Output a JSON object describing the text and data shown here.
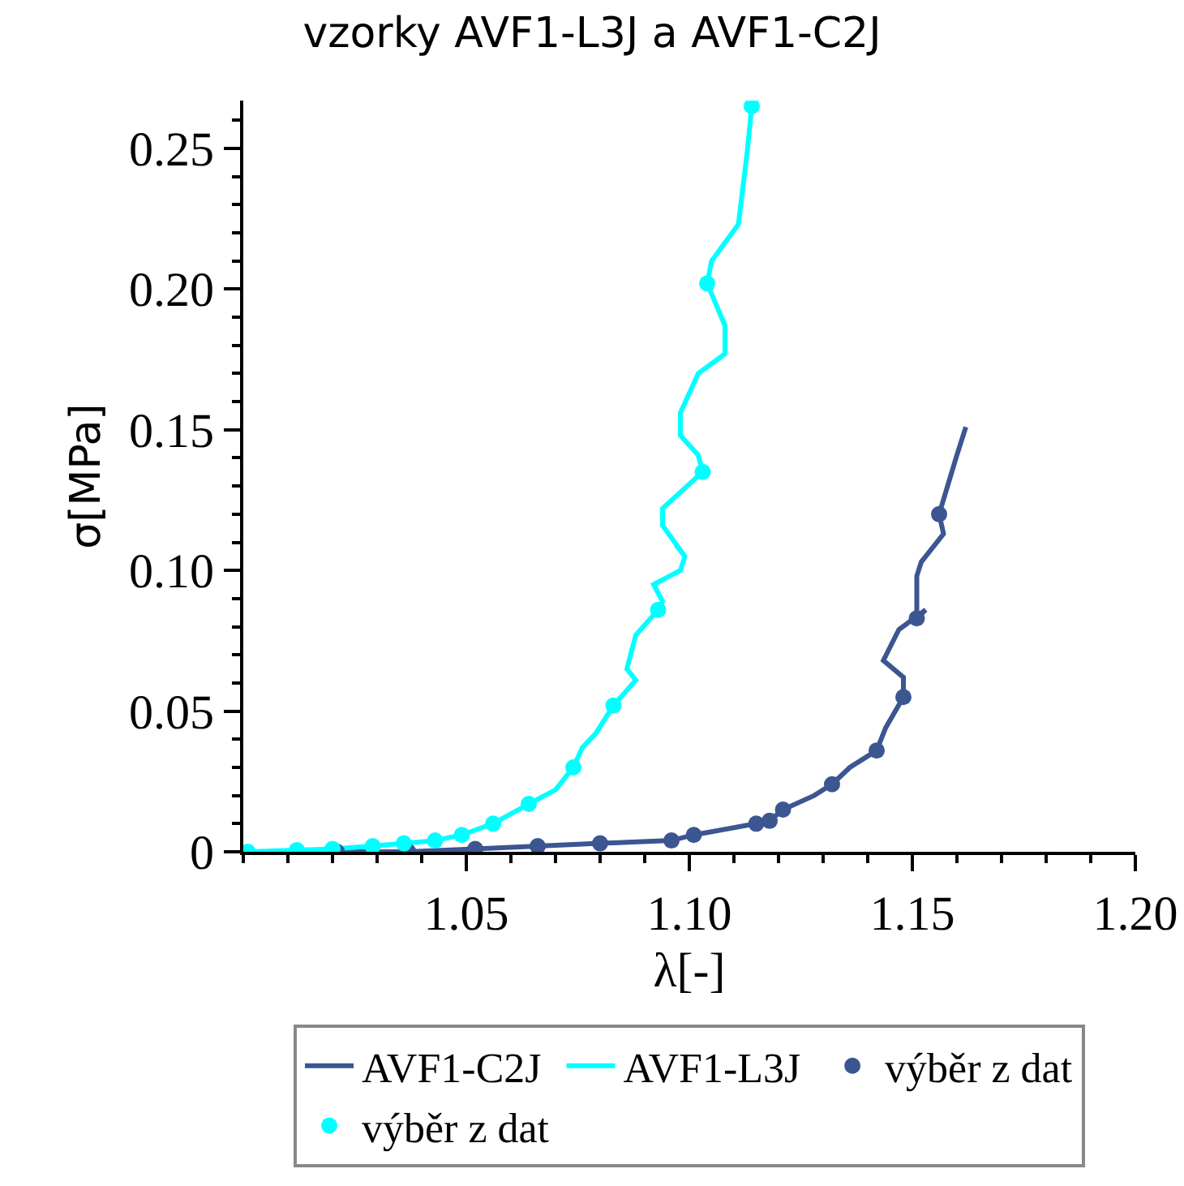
{
  "chart_data": {
    "type": "line",
    "title": "vzorky AVF1-L3J a AVF1-C2J",
    "xlabel": "λ[-]",
    "ylabel": "σ[MPa]",
    "xlim": [
      1.0,
      1.2
    ],
    "xticks": [
      1.05,
      {
        "value": 1.1,
        "label": "1.10"
      },
      1.15,
      {
        "value": 1.2,
        "label": "1.20"
      }
    ],
    "ylim": [
      0,
      0.267
    ],
    "yticks": [
      0,
      0.05,
      {
        "value": 0.1,
        "label": "0.10"
      },
      0.15,
      {
        "value": 0.2,
        "label": "0.20"
      },
      0.25
    ],
    "grid": false,
    "legend": "bottom",
    "series": [
      {
        "name": "AVF1-C2J",
        "type": "line",
        "color": "#3b5690",
        "marker": "none",
        "x": [
          1.021,
          1.037,
          1.052,
          1.066,
          1.08,
          1.096,
          1.101,
          1.115,
          1.118,
          1.121,
          1.128,
          1.132,
          1.136,
          1.142,
          1.144,
          1.148,
          1.148,
          1.1435,
          1.147,
          1.153,
          1.151,
          1.151,
          1.152,
          1.157,
          1.156,
          1.16,
          1.162
        ],
        "values": [
          0,
          0,
          0.001,
          0.002,
          0.003,
          0.004,
          0.006,
          0.01,
          0.011,
          0.015,
          0.02,
          0.024,
          0.03,
          0.036,
          0.044,
          0.055,
          0.062,
          0.068,
          0.079,
          0.086,
          0.083,
          0.098,
          0.103,
          0.113,
          0.12,
          0.141,
          0.151
        ]
      },
      {
        "name": "AVF1-L3J",
        "type": "line",
        "color": "#00ffff",
        "marker": "none",
        "x": [
          1.001,
          1.012,
          1.02,
          1.029,
          1.036,
          1.043,
          1.049,
          1.056,
          1.064,
          1.07,
          1.074,
          1.076,
          1.079,
          1.083,
          1.088,
          1.086,
          1.088,
          1.093,
          1.094,
          1.092,
          1.098,
          1.099,
          1.097,
          1.099,
          1.094,
          1.094,
          1.103,
          1.102,
          1.098,
          1.098,
          1.102,
          1.108,
          1.108,
          1.104,
          1.105,
          1.111,
          1.113,
          1.114
        ],
        "values": [
          0,
          0.0006,
          0.001,
          0.002,
          0.003,
          0.004,
          0.006,
          0.01,
          0.017,
          0.022,
          0.03,
          0.037,
          0.042,
          0.052,
          0.061,
          0.065,
          0.077,
          0.086,
          0.089,
          0.095,
          0.1,
          0.105,
          0.109,
          0.105,
          0.116,
          0.122,
          0.135,
          0.141,
          0.148,
          0.156,
          0.17,
          0.177,
          0.187,
          0.202,
          0.21,
          0.223,
          0.249,
          0.265
        ]
      },
      {
        "name": "výběr z dat",
        "type": "scatter",
        "color": "#3b5690",
        "marker": "circle",
        "x": [
          1.021,
          1.037,
          1.052,
          1.066,
          1.08,
          1.096,
          1.101,
          1.115,
          1.118,
          1.121,
          1.132,
          1.142,
          1.148,
          1.151,
          1.156
        ],
        "values": [
          0,
          0,
          0.001,
          0.002,
          0.003,
          0.004,
          0.006,
          0.01,
          0.011,
          0.015,
          0.024,
          0.036,
          0.055,
          0.083,
          0.12
        ]
      },
      {
        "name": "výběr z dat",
        "type": "scatter",
        "color": "#00ffff",
        "marker": "circle",
        "x": [
          1.001,
          1.012,
          1.02,
          1.029,
          1.036,
          1.043,
          1.049,
          1.056,
          1.064,
          1.074,
          1.083,
          1.093,
          1.103,
          1.104,
          1.114
        ],
        "values": [
          0,
          0.0006,
          0.001,
          0.002,
          0.003,
          0.004,
          0.006,
          0.01,
          0.017,
          0.03,
          0.052,
          0.086,
          0.135,
          0.202,
          0.265
        ]
      }
    ]
  }
}
